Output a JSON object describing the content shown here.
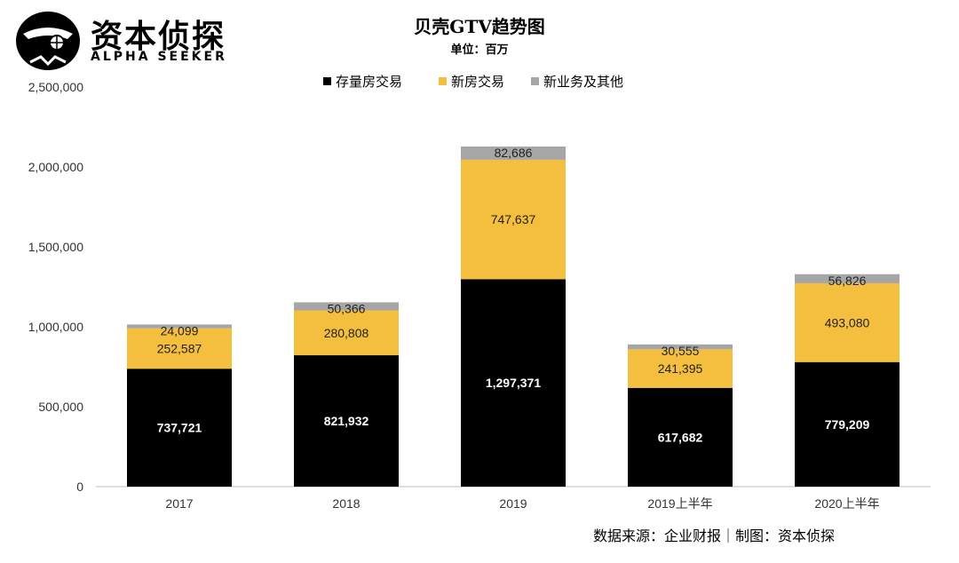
{
  "brand": {
    "name": "资本侦探",
    "tagline": "ALPHA SEEKER"
  },
  "footer": {
    "source": "数据来源：企业财报｜制图：资本侦探"
  },
  "colors": {
    "stock": "#000000",
    "new_home": "#F4BE3E",
    "other": "#A6A6A6",
    "axis": "#BFBFBF"
  },
  "chart_data": {
    "type": "bar",
    "stacked": true,
    "title": "贝壳GTV趋势图",
    "subtitle": "单位：百万",
    "categories": [
      "2017",
      "2018",
      "2019",
      "2019上半年",
      "2020上半年"
    ],
    "series": [
      {
        "name": "存量房交易",
        "values": [
          737721,
          821932,
          1297371,
          617682,
          779209
        ]
      },
      {
        "name": "新房交易",
        "values": [
          252587,
          280808,
          747637,
          241395,
          493080
        ]
      },
      {
        "name": "新业务及其他",
        "values": [
          24099,
          50366,
          82686,
          30555,
          56826
        ]
      }
    ],
    "data_labels": [
      [
        "737,721",
        "821,932",
        "1,297,371",
        "617,682",
        "779,209"
      ],
      [
        "252,587",
        "280,808",
        "747,637",
        "241,395",
        "493,080"
      ],
      [
        "24,099",
        "50,366",
        "82,686",
        "30,555",
        "56,826"
      ]
    ],
    "y_ticks": [
      "0",
      "500,000",
      "1,000,000",
      "1,500,000",
      "2,000,000",
      "2,500,000"
    ],
    "ylim": [
      0,
      2500000
    ],
    "grid": false,
    "legend_position": "top-center"
  }
}
